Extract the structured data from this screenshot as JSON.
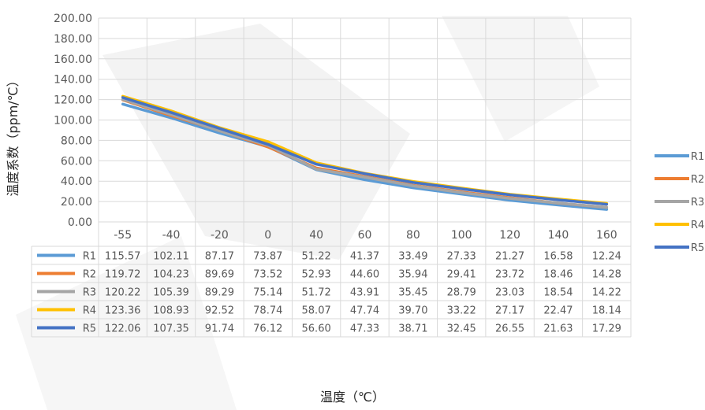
{
  "chart_data": {
    "type": "line",
    "title": "",
    "xlabel": "温度（℃）",
    "ylabel": "温度系数（ppm/℃）",
    "categories": [
      "-55",
      "-40",
      "-20",
      "0",
      "40",
      "60",
      "80",
      "100",
      "120",
      "140",
      "160"
    ],
    "ylim": [
      0,
      200
    ],
    "yticks": [
      "0.00",
      "20.00",
      "40.00",
      "60.00",
      "80.00",
      "100.00",
      "120.00",
      "140.00",
      "160.00",
      "180.00",
      "200.00"
    ],
    "grid": true,
    "legend": "right",
    "data_table": true,
    "series": [
      {
        "name": "R1",
        "color": "#5B9BD5",
        "values": [
          "115.57",
          "102.11",
          "87.17",
          "73.87",
          "51.22",
          "41.37",
          "33.49",
          "27.33",
          "21.27",
          "16.58",
          "12.24"
        ]
      },
      {
        "name": "R2",
        "color": "#ED7D31",
        "values": [
          "119.72",
          "104.23",
          "89.69",
          "73.52",
          "52.93",
          "44.60",
          "35.94",
          "29.41",
          "23.72",
          "18.46",
          "14.28"
        ]
      },
      {
        "name": "R3",
        "color": "#A5A5A5",
        "values": [
          "120.22",
          "105.39",
          "89.29",
          "75.14",
          "51.72",
          "43.91",
          "35.45",
          "28.79",
          "23.03",
          "18.54",
          "14.22"
        ]
      },
      {
        "name": "R4",
        "color": "#FFC000",
        "values": [
          "123.36",
          "108.93",
          "92.52",
          "78.74",
          "58.07",
          "47.74",
          "39.70",
          "33.22",
          "27.17",
          "22.47",
          "18.14"
        ]
      },
      {
        "name": "R5",
        "color": "#4472C4",
        "values": [
          "122.06",
          "107.35",
          "91.74",
          "76.12",
          "56.60",
          "47.33",
          "38.71",
          "32.45",
          "26.55",
          "21.63",
          "17.29"
        ]
      }
    ]
  }
}
